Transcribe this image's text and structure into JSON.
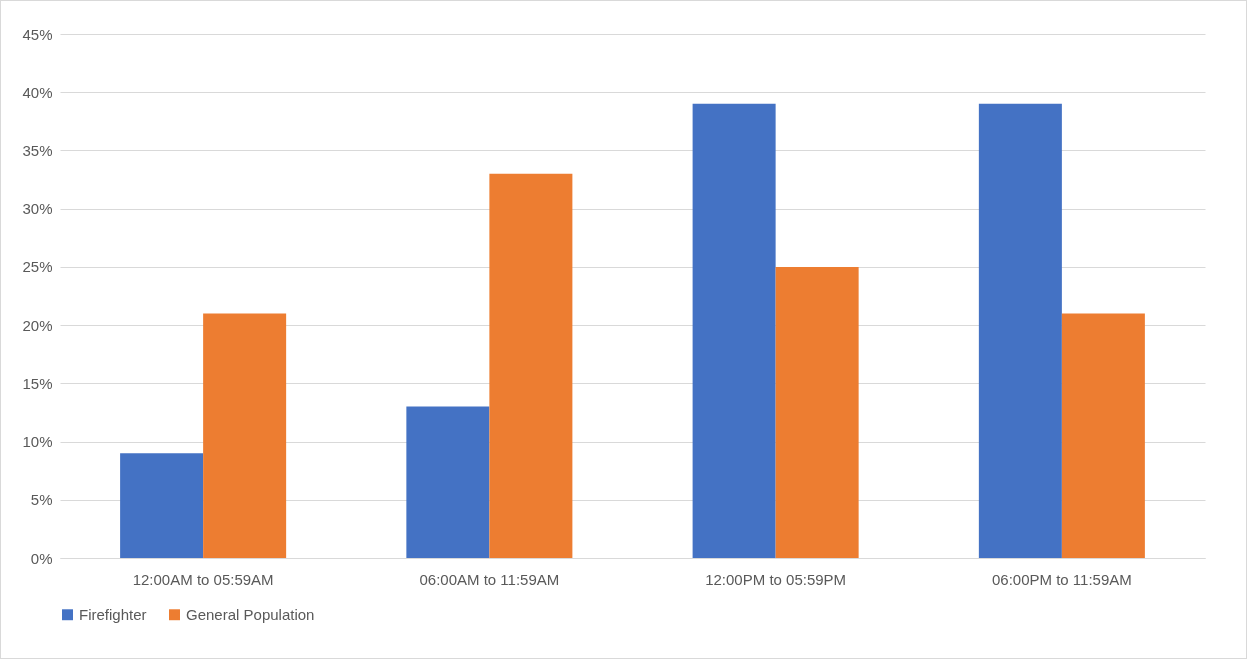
{
  "chart_data": {
    "type": "bar",
    "categories": [
      "12:00AM to 05:59AM",
      "06:00AM to 11:59AM",
      "12:00PM to 05:59PM",
      "06:00PM to 11:59AM"
    ],
    "series": [
      {
        "name": "Firefighter",
        "color": "#4472c4",
        "values": [
          9,
          13,
          39,
          39
        ]
      },
      {
        "name": "General Population",
        "color": "#ed7d31",
        "values": [
          21,
          33,
          25,
          21
        ]
      }
    ],
    "ylim": [
      0,
      45
    ],
    "yticks": [
      {
        "value": 0,
        "label": "0%"
      },
      {
        "value": 5,
        "label": "5%"
      },
      {
        "value": 10,
        "label": "10%"
      },
      {
        "value": 15,
        "label": "15%"
      },
      {
        "value": 20,
        "label": "20%"
      },
      {
        "value": 25,
        "label": "25%"
      },
      {
        "value": 30,
        "label": "30%"
      },
      {
        "value": 35,
        "label": "35%"
      },
      {
        "value": 40,
        "label": "40%"
      },
      {
        "value": 45,
        "label": "45%"
      }
    ],
    "grid": "y",
    "legend": "bottom"
  }
}
